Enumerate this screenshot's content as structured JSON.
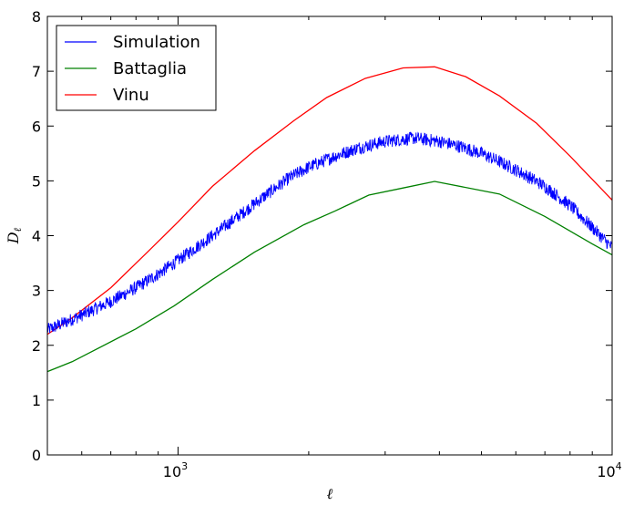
{
  "chart_data": {
    "type": "line",
    "xscale": "log",
    "xlabel": "ℓ",
    "ylabel": "D",
    "ylabel_sub": "ℓ",
    "xlim": [
      500,
      10000
    ],
    "ylim": [
      0,
      8
    ],
    "yticks": [
      0,
      1,
      2,
      3,
      4,
      5,
      6,
      7,
      8
    ],
    "xticks": [
      {
        "value": 1000,
        "base": "10",
        "exp": "3"
      },
      {
        "value": 10000,
        "base": "10",
        "exp": "4"
      }
    ],
    "grid": false,
    "legend": {
      "position": "top-left"
    },
    "series": [
      {
        "name": "Simulation",
        "color": "#0000ff",
        "style": "noisy",
        "noise_band": 0.12,
        "points": [
          [
            500,
            2.28
          ],
          [
            600,
            2.55
          ],
          [
            700,
            2.8
          ],
          [
            800,
            3.05
          ],
          [
            900,
            3.3
          ],
          [
            1000,
            3.55
          ],
          [
            1200,
            4.0
          ],
          [
            1400,
            4.4
          ],
          [
            1600,
            4.75
          ],
          [
            1800,
            5.05
          ],
          [
            2000,
            5.25
          ],
          [
            2300,
            5.45
          ],
          [
            2600,
            5.6
          ],
          [
            3000,
            5.72
          ],
          [
            3500,
            5.78
          ],
          [
            4000,
            5.72
          ],
          [
            4500,
            5.62
          ],
          [
            5000,
            5.5
          ],
          [
            5500,
            5.35
          ],
          [
            6000,
            5.2
          ],
          [
            6500,
            5.05
          ],
          [
            7000,
            4.9
          ],
          [
            8000,
            4.55
          ],
          [
            9000,
            4.15
          ],
          [
            10000,
            3.78
          ]
        ]
      },
      {
        "name": "Battaglia",
        "color": "#008000",
        "style": "line",
        "points": [
          [
            500,
            1.52
          ],
          [
            570,
            1.7
          ],
          [
            800,
            2.3
          ],
          [
            980,
            2.72
          ],
          [
            1200,
            3.2
          ],
          [
            1500,
            3.7
          ],
          [
            1950,
            4.2
          ],
          [
            2300,
            4.45
          ],
          [
            2750,
            4.74
          ],
          [
            3300,
            4.87
          ],
          [
            3900,
            4.99
          ],
          [
            5500,
            4.76
          ],
          [
            7000,
            4.35
          ],
          [
            9000,
            3.85
          ],
          [
            10000,
            3.65
          ]
        ]
      },
      {
        "name": "Vinu",
        "color": "#ff0000",
        "style": "line",
        "points": [
          [
            500,
            2.2
          ],
          [
            570,
            2.5
          ],
          [
            700,
            3.05
          ],
          [
            850,
            3.7
          ],
          [
            1000,
            4.25
          ],
          [
            1200,
            4.9
          ],
          [
            1500,
            5.55
          ],
          [
            1850,
            6.1
          ],
          [
            2200,
            6.52
          ],
          [
            2700,
            6.87
          ],
          [
            3300,
            7.06
          ],
          [
            3900,
            7.08
          ],
          [
            4600,
            6.9
          ],
          [
            5500,
            6.55
          ],
          [
            6700,
            6.05
          ],
          [
            8000,
            5.45
          ],
          [
            10000,
            4.65
          ]
        ]
      }
    ]
  }
}
